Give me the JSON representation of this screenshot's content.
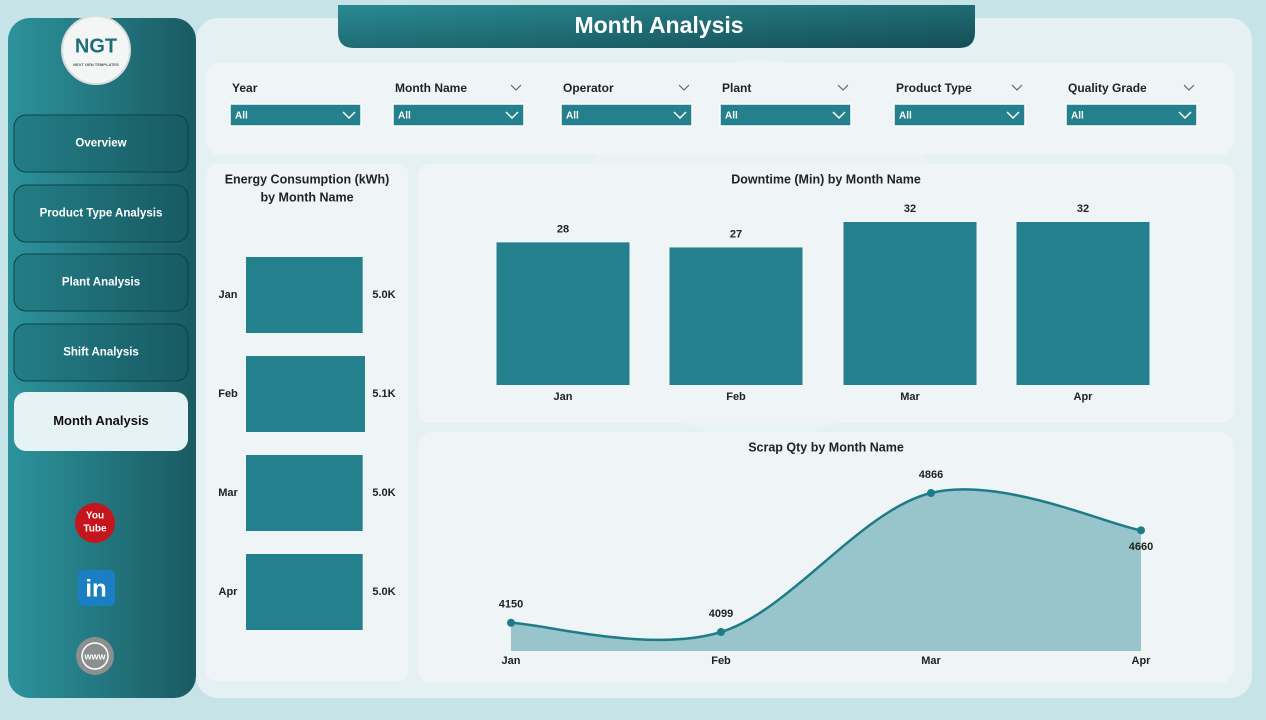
{
  "title": "Month Analysis",
  "logo": {
    "name": "NGT",
    "tagline": "NEXT GEN TEMPLATES"
  },
  "nav": [
    "Overview",
    "Product Type Analysis",
    "Plant Analysis",
    "Shift Analysis",
    "Month Analysis"
  ],
  "icons": [
    "You",
    "Tube",
    "in",
    "www"
  ],
  "filters": [
    {
      "label": "Year",
      "value": "All"
    },
    {
      "label": "Month Name",
      "value": "All"
    },
    {
      "label": "Operator",
      "value": "All"
    },
    {
      "label": "Plant",
      "value": "All"
    },
    {
      "label": "Product Type",
      "value": "All"
    },
    {
      "label": "Quality Grade",
      "value": "All"
    }
  ],
  "chart_data": [
    {
      "type": "hbar",
      "title": [
        "Energy Consumption (kWh)",
        "by Month Name"
      ],
      "categories": [
        "Jan",
        "Feb",
        "Mar",
        "Apr"
      ],
      "values": [
        5000,
        5100,
        5000,
        5000
      ],
      "value_labels": [
        "5.0K",
        "5.1K",
        "5.0K",
        "5.0K"
      ],
      "color": "#23808c"
    },
    {
      "type": "bar",
      "title": [
        "Downtime (Min) by Month Name"
      ],
      "categories": [
        "Jan",
        "Feb",
        "Mar",
        "Apr"
      ],
      "values": [
        28,
        27,
        32,
        32
      ],
      "color": "#23808c"
    },
    {
      "type": "area",
      "title": [
        "Scrap Qty by Month Name"
      ],
      "categories": [
        "Jan",
        "Feb",
        "Mar",
        "Apr"
      ],
      "values": [
        4150,
        4099,
        4866,
        4660
      ],
      "color": "#1d7c88"
    }
  ]
}
